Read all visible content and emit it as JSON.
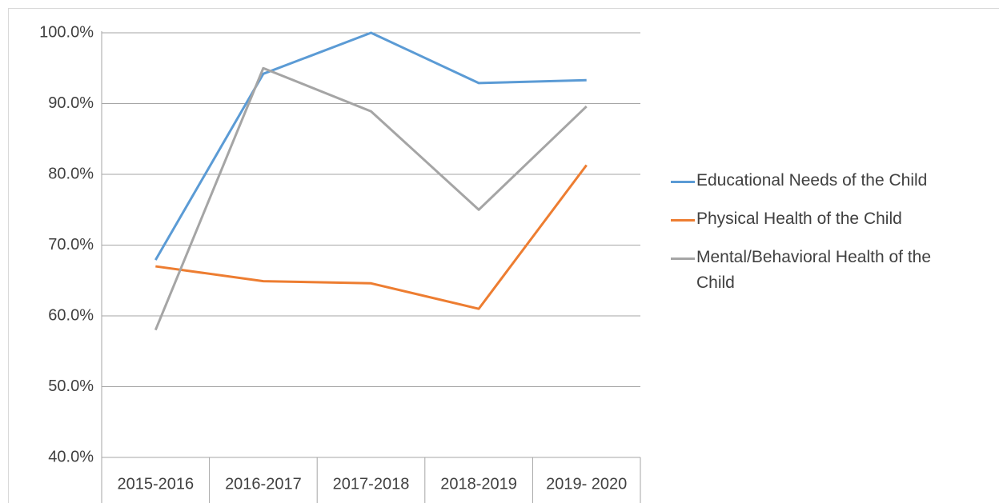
{
  "chart_data": {
    "type": "line",
    "categories": [
      "2015-2016",
      "2016-2017",
      "2017-2018",
      "2018-2019",
      "2019- 2020"
    ],
    "series": [
      {
        "name": "Educational Needs of the Child",
        "color": "#5b9bd5",
        "values": [
          67.9,
          94.2,
          100,
          92.9,
          93.3
        ]
      },
      {
        "name": "Physical Health of the Child",
        "color": "#ed7d31",
        "values": [
          67.0,
          64.9,
          64.6,
          61.0,
          81.3
        ]
      },
      {
        "name": "Mental/Behavioral Health of the Child",
        "color": "#a5a5a5",
        "values": [
          58.0,
          95.0,
          88.9,
          75.0,
          89.6
        ]
      }
    ],
    "ylim": [
      40,
      100
    ],
    "yticks": [
      {
        "value": 40,
        "label": "40.0%"
      },
      {
        "value": 50,
        "label": "50.0%"
      },
      {
        "value": 60,
        "label": "60.0%"
      },
      {
        "value": 70,
        "label": "70.0%"
      },
      {
        "value": 80,
        "label": "80.0%"
      },
      {
        "value": 90,
        "label": "90.0%"
      },
      {
        "value": 100,
        "label": "100.0%"
      }
    ],
    "grid": true,
    "legend": "right"
  }
}
